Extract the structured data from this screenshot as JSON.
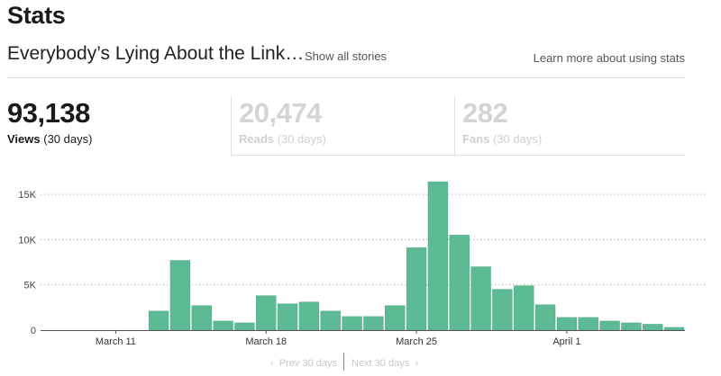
{
  "page": {
    "title": "Stats"
  },
  "story": {
    "title": "Everybody’s Lying About the Link…",
    "show_all_label": "Show all stories",
    "learn_more_label": "Learn more about using stats"
  },
  "tabs": [
    {
      "value": "93,138",
      "label": "Views",
      "period": "(30 days)",
      "active": true
    },
    {
      "value": "20,474",
      "label": "Reads",
      "period": "(30 days)",
      "active": false
    },
    {
      "value": "282",
      "label": "Fans",
      "period": "(30 days)",
      "active": false
    }
  ],
  "pager": {
    "prev_label": "Prev 30 days",
    "next_label": "Next 30 days"
  },
  "colors": {
    "bar": "#5dbb93",
    "bar_stroke": "#4aa57f",
    "grid": "#999999",
    "axis": "#555555"
  },
  "chart_data": {
    "type": "bar",
    "series": [
      {
        "values": [
          0,
          0,
          0,
          0,
          0,
          2100,
          7700,
          2700,
          1000,
          800,
          3800,
          2900,
          3100,
          2100,
          1500,
          1500,
          2700,
          9100,
          16400,
          10500,
          7000,
          4500,
          4900,
          2800,
          1400,
          1400,
          1000,
          800,
          650,
          300
        ]
      }
    ],
    "x_tick_labels": [
      {
        "label": "March 11",
        "index": 3.5
      },
      {
        "label": "March 18",
        "index": 10.5
      },
      {
        "label": "March 25",
        "index": 17.5
      },
      {
        "label": "April 1",
        "index": 24.5
      }
    ],
    "y_ticks": [
      0,
      5000,
      10000,
      15000
    ],
    "y_tick_labels": [
      "0",
      "5K",
      "10K",
      "15K"
    ],
    "ylim": [
      0,
      17000
    ],
    "grid": true
  }
}
